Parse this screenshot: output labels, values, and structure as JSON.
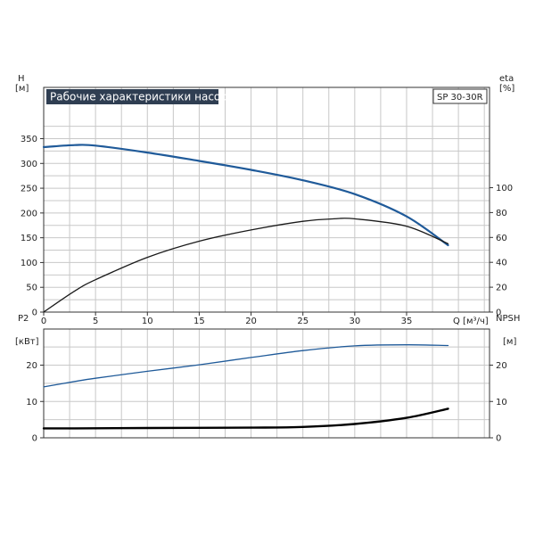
{
  "chart_data": [
    {
      "type": "line",
      "panel": "top",
      "title": "Рабочие характеристики насоса",
      "model": "SP 30-30R",
      "xlabel": "Q [м³/ч]",
      "ylabel_left": "H",
      "ylabel_left_unit": "[м]",
      "ylabel_right": "eta",
      "ylabel_right_unit": "[%]",
      "xlim": [
        0,
        43
      ],
      "ylim_left": [
        0,
        350
      ],
      "ylim_right": [
        0,
        100
      ],
      "x_ticks": [
        0,
        5,
        10,
        15,
        20,
        25,
        30,
        35
      ],
      "y_left_ticks": [
        0,
        50,
        100,
        150,
        200,
        250,
        300,
        350
      ],
      "y_right_ticks": [
        0,
        20,
        40,
        60,
        80,
        100
      ],
      "grid": true,
      "series": [
        {
          "axis": "left",
          "color": "#1f5a99",
          "x": [
            0,
            3,
            5,
            10,
            15,
            20,
            25,
            30,
            35,
            39
          ],
          "y": [
            333,
            337,
            336,
            322,
            305,
            287,
            266,
            238,
            193,
            135
          ]
        },
        {
          "axis": "right",
          "color": "#1a1a1a",
          "x": [
            0,
            3,
            5,
            10,
            15,
            20,
            25,
            28,
            30,
            35,
            39
          ],
          "y": [
            0,
            17,
            26,
            44,
            57,
            66,
            73,
            75,
            75,
            69,
            55
          ]
        }
      ]
    },
    {
      "type": "line",
      "panel": "bottom",
      "ylabel_left": "P2",
      "ylabel_left_unit": "[кВт]",
      "ylabel_right": "NPSH",
      "ylabel_right_unit": "[м]",
      "xlim": [
        0,
        43
      ],
      "ylim_left": [
        0,
        30
      ],
      "ylim_right": [
        0,
        30
      ],
      "y_left_ticks": [
        0,
        10,
        20
      ],
      "y_right_ticks": [
        0,
        10,
        20
      ],
      "grid": true,
      "series": [
        {
          "axis": "left",
          "color": "#1f5a99",
          "x": [
            0,
            3,
            5,
            10,
            15,
            20,
            25,
            30,
            35,
            39
          ],
          "y": [
            14,
            15.5,
            16.4,
            18.3,
            20.1,
            22.1,
            24,
            25.3,
            25.6,
            25.4
          ]
        },
        {
          "axis": "right",
          "color": "#000000",
          "x": [
            0,
            3,
            10,
            20,
            25,
            30,
            35,
            39
          ],
          "y": [
            2.6,
            2.6,
            2.7,
            2.8,
            3.0,
            3.8,
            5.5,
            8.0
          ]
        }
      ]
    }
  ]
}
